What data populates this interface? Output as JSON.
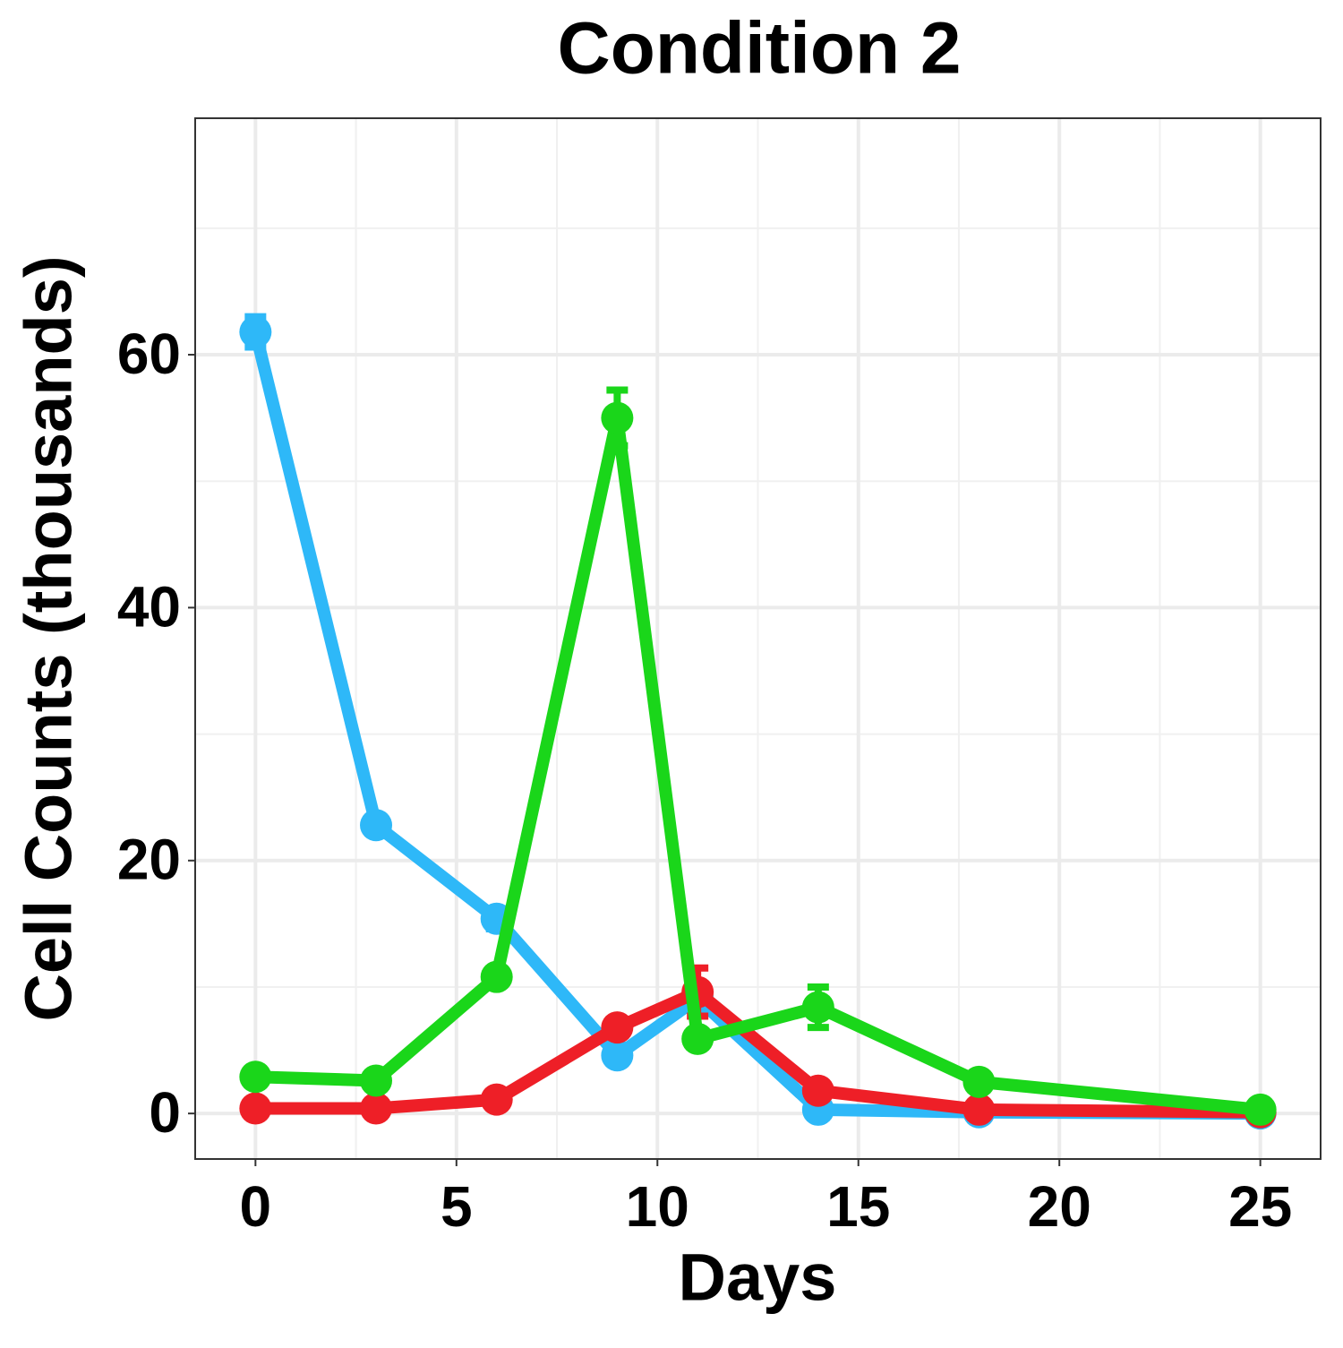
{
  "chart_data": {
    "type": "line",
    "title": "Condition 2",
    "x_label": "Days",
    "y_label": "Cell Counts (thousands)",
    "x": [
      0,
      3,
      6,
      9,
      11,
      14,
      18,
      25
    ],
    "series": [
      {
        "color": "#2eb8f8",
        "values": [
          61.8,
          22.8,
          15.4,
          4.6,
          9.1,
          0.3,
          0.1,
          0
        ],
        "errors": [
          1.2,
          0.5,
          0.8,
          0.3,
          0.8,
          0.2,
          0.1,
          0.1
        ]
      },
      {
        "color": "#ee1f27",
        "values": [
          0.4,
          0.4,
          1.1,
          6.8,
          9.6,
          1.8,
          0.3,
          0.1
        ],
        "errors": [
          0.1,
          0.1,
          0.2,
          0.5,
          1.9,
          0.5,
          0.1,
          0.1
        ]
      },
      {
        "color": "#1ad61a",
        "values": [
          2.9,
          2.6,
          10.8,
          55.0,
          5.9,
          8.4,
          2.5,
          0.3
        ],
        "errors": [
          0.2,
          0.2,
          0.5,
          2.2,
          0.4,
          1.6,
          0.3,
          0.1
        ]
      }
    ],
    "xlim": [
      -1.5,
      26.5
    ],
    "ylim": [
      -3.6,
      78.7
    ],
    "xticks": [
      0,
      5,
      10,
      15,
      20,
      25
    ],
    "yticks": [
      0,
      20,
      40,
      60
    ],
    "x_minor_ticks": [
      2.5,
      7.5,
      12.5,
      17.5,
      22.5
    ],
    "y_minor_ticks": [
      10,
      30,
      50,
      70
    ],
    "grid": true
  }
}
